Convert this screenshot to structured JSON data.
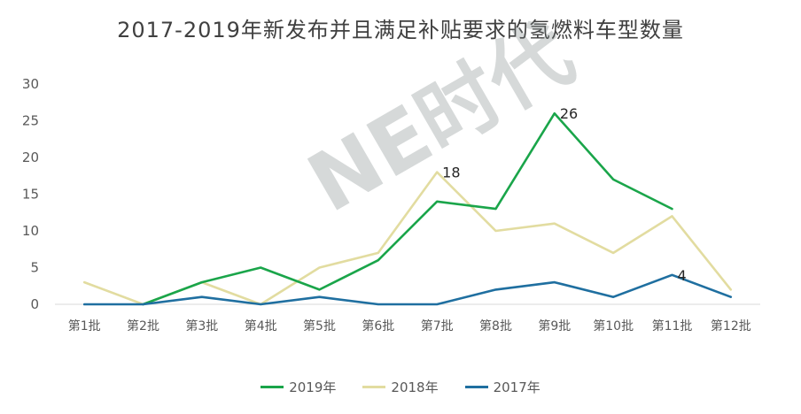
{
  "chart_data": {
    "type": "line",
    "title": "2017-2019年新发布并且满足补贴要求的氢燃料车型数量",
    "categories": [
      "第1批",
      "第2批",
      "第3批",
      "第4批",
      "第5批",
      "第6批",
      "第7批",
      "第8批",
      "第9批",
      "第10批",
      "第11批",
      "第12批"
    ],
    "ylim": [
      0,
      30
    ],
    "yticks": [
      "0",
      "5",
      "10",
      "15",
      "20",
      "25",
      "30"
    ],
    "series": [
      {
        "name": "2019年",
        "color": "#1aa54a",
        "values": [
          null,
          0,
          3,
          5,
          2,
          6,
          14,
          13,
          26,
          17,
          13,
          null
        ]
      },
      {
        "name": "2018年",
        "color": "#e2dca0",
        "values": [
          3,
          0,
          3,
          0,
          5,
          7,
          18,
          10,
          11,
          7,
          12,
          2
        ]
      },
      {
        "name": "2017年",
        "color": "#1f6fa0",
        "values": [
          0,
          0,
          1,
          0,
          1,
          0,
          0,
          2,
          3,
          1,
          4,
          1
        ]
      }
    ],
    "data_labels": [
      {
        "series": 0,
        "index": 8,
        "text": "26"
      },
      {
        "series": 1,
        "index": 6,
        "text": "18"
      },
      {
        "series": 2,
        "index": 10,
        "text": "4"
      }
    ],
    "grid": false,
    "legend_position": "bottom"
  },
  "watermark": "NE时代"
}
